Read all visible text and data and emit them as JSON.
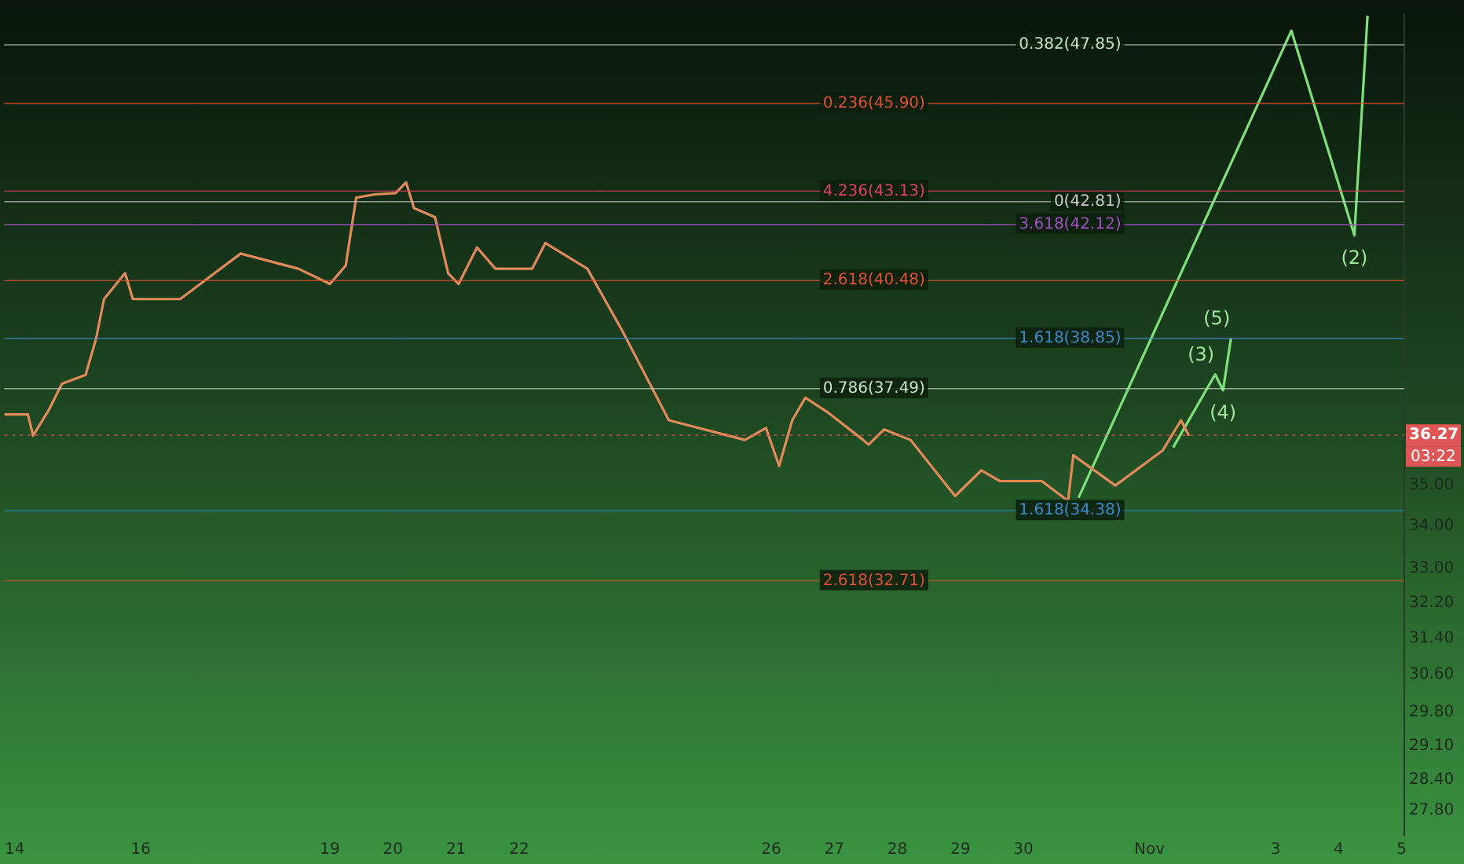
{
  "chart_data": {
    "type": "line",
    "log": "y",
    "grid": false,
    "legend": false,
    "marker": "none",
    "line_style": "solid",
    "xlim": [
      "--10-13T20:00",
      "--11-05T01:00"
    ],
    "ylim": [
      27.3,
      48.9
    ],
    "xticks": [
      {
        "value": "--10-14",
        "label": "14"
      },
      {
        "value": "--10-16",
        "label": "16"
      },
      {
        "value": "--10-19",
        "label": "19"
      },
      {
        "value": "--10-20",
        "label": "20"
      },
      {
        "value": "--10-21",
        "label": "21"
      },
      {
        "value": "--10-22",
        "label": "22"
      },
      {
        "value": "--10-26",
        "label": "26"
      },
      {
        "value": "--10-27",
        "label": "27"
      },
      {
        "value": "--10-28",
        "label": "28"
      },
      {
        "value": "--10-29",
        "label": "29"
      },
      {
        "value": "--10-30",
        "label": "30"
      },
      {
        "value": "--11-01",
        "label": "Nov"
      },
      {
        "value": "--11-03",
        "label": "3"
      },
      {
        "value": "--11-04",
        "label": "4"
      },
      {
        "value": "--11-05",
        "label": "5"
      }
    ],
    "yticks": [
      {
        "value": 27.8,
        "label": "27.80"
      },
      {
        "value": 28.4,
        "label": "28.40"
      },
      {
        "value": 29.1,
        "label": "29.10"
      },
      {
        "value": 29.8,
        "label": "29.80"
      },
      {
        "value": 30.6,
        "label": "30.60"
      },
      {
        "value": 31.4,
        "label": "31.40"
      },
      {
        "value": 32.2,
        "label": "32.20"
      },
      {
        "value": 33,
        "label": "33.00"
      },
      {
        "value": 34,
        "label": "34.00"
      },
      {
        "value": 35,
        "label": "35.00"
      }
    ],
    "series": [
      {
        "color": "#e08a5a",
        "x": [
          "--10-13T20:00",
          "--10-14T05:00",
          "--10-14T07:00",
          "--10-14T13:00",
          "--10-14T18:00",
          "--10-15T03:00",
          "--10-15T07:00",
          "--10-15T10:00",
          "--10-15T18:00",
          "--10-15T21:00",
          "--10-16T15:00",
          "--10-17T14:00",
          "--10-18T12:00",
          "--10-19T00:00",
          "--10-19T06:00",
          "--10-19T10:00",
          "--10-19T17:00",
          "--10-20T01:00",
          "--10-20T05:00",
          "--10-20T08:00",
          "--10-20T16:00",
          "--10-20T21:00",
          "--10-21T01:00",
          "--10-21T08:00",
          "--10-21T15:00",
          "--10-22T05:00",
          "--10-22T10:00",
          "--10-23T02:00",
          "--10-23T15:00",
          "--10-24T09:00",
          "--10-25T14:00",
          "--10-25T22:00",
          "--10-26T03:00",
          "--10-26T08:00",
          "--10-26T13:00",
          "--10-26T22:00",
          "--10-27T11:00",
          "--10-27T13:00",
          "--10-27T19:00",
          "--10-28T05:00",
          "--10-28T22:00",
          "--10-29T08:00",
          "--10-29T15:00",
          "--10-30T07:00",
          "--10-30T17:00",
          "--10-30T19:00",
          "--10-31T11:00",
          "--11-01T05:00",
          "--11-01T12:00",
          "--11-01T15:00"
        ],
        "values": [
          36.81,
          36.81,
          36.26,
          36.93,
          37.62,
          37.86,
          38.85,
          39.95,
          40.69,
          39.95,
          39.95,
          41.26,
          40.82,
          40.38,
          40.91,
          42.93,
          43.03,
          43.07,
          43.4,
          42.61,
          42.34,
          40.69,
          40.38,
          41.44,
          40.82,
          40.82,
          41.57,
          40.82,
          39.1,
          36.66,
          36.15,
          36.46,
          35.49,
          36.66,
          37.25,
          36.84,
          36.15,
          36.03,
          36.42,
          36.15,
          34.74,
          35.38,
          35.11,
          35.11,
          34.62,
          35.76,
          35.0,
          35.88,
          36.66,
          36.26
        ]
      },
      {
        "color": "#7ee07a",
        "x": [
          "--10-30T21:00",
          "--11-03T06:00",
          "--11-04T06:00",
          "--11-04T11:00"
        ],
        "values": [
          34.7,
          48.33,
          41.8,
          48.85
        ]
      },
      {
        "color": "#7ee07a",
        "x": [
          "--11-01T09:00",
          "--11-02T01:00",
          "--11-02T04:00",
          "--11-02T07:00"
        ],
        "values": [
          35.96,
          37.87,
          37.45,
          38.85
        ]
      }
    ],
    "ref_lines": [
      {
        "axis": "y",
        "value": 36.27,
        "label": "36.27",
        "color": "#e05555",
        "line_style": "dotted"
      },
      {
        "axis": "y",
        "value": 47.85,
        "label": "0.382(47.85)",
        "color": "#c8e0c8",
        "line_style": "solid"
      },
      {
        "axis": "y",
        "value": 45.9,
        "label": "0.236(45.90)",
        "color": "#e05030",
        "line_style": "solid"
      },
      {
        "axis": "y",
        "value": 42.81,
        "label": "0(42.81)",
        "color": "#c8c8c8",
        "line_style": "solid"
      },
      {
        "axis": "y",
        "value": 43.13,
        "label": "4.236(43.13)",
        "color": "#e04060",
        "line_style": "solid"
      },
      {
        "axis": "y",
        "value": 42.12,
        "label": "3.618(42.12)",
        "color": "#a050c0",
        "line_style": "solid"
      },
      {
        "axis": "y",
        "value": 40.48,
        "label": "2.618(40.48)",
        "color": "#e05030",
        "line_style": "solid"
      },
      {
        "axis": "y",
        "value": 38.85,
        "label": "1.618(38.85)",
        "color": "#3a8ad0",
        "line_style": "solid"
      },
      {
        "axis": "y",
        "value": 37.49,
        "label": "0.786(37.49)",
        "color": "#c8e0c8",
        "line_style": "solid"
      },
      {
        "axis": "y",
        "value": 34.38,
        "label": "1.618(34.38)",
        "color": "#3a8ad0",
        "line_style": "solid"
      },
      {
        "axis": "y",
        "value": 32.71,
        "label": "2.618(32.71)",
        "color": "#e05030",
        "line_style": "solid"
      }
    ],
    "annotations": [
      "03:22",
      {
        "text": "(2)",
        "x": "--11-04T06:00",
        "y": 41.8
      },
      {
        "text": "(3)",
        "x": "--11-02T01:00",
        "y": 37.87
      },
      {
        "text": "(4)",
        "x": "--11-02T04:00",
        "y": 37.45
      },
      {
        "text": "(5)",
        "x": "--11-02T07:00",
        "y": 38.85
      }
    ]
  }
}
